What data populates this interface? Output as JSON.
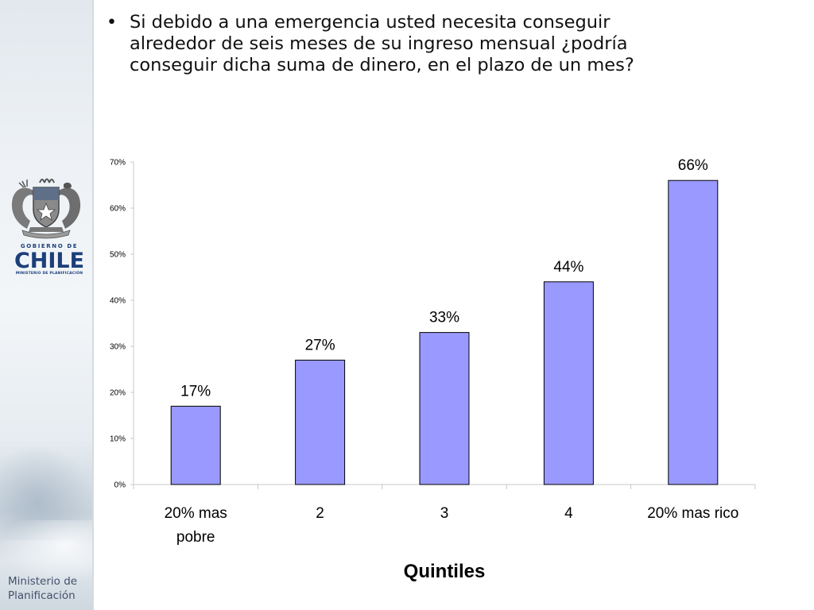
{
  "question": {
    "bullet": "•",
    "lines": [
      "Si debido a una emergencia usted necesita conseguir",
      "alrededor  de seis meses de su ingreso mensual ¿podría",
      "conseguir dicha suma de dinero, en el plazo de un mes?"
    ]
  },
  "branding": {
    "gobierno": "GOBIERNO DE",
    "chile": "CHILE",
    "ministerio_small": "MINISTERIO DE PLANIFICACIÓN",
    "footer_line1": "Ministerio de",
    "footer_line2": "Planificación",
    "crest_icon": "chile-coat-of-arms-icon"
  },
  "colors": {
    "bar_fill": "#9999ff",
    "bar_stroke": "#000000",
    "brand_blue": "#1c3f7a",
    "brand_red": "#c8102e"
  },
  "chart_data": {
    "type": "bar",
    "title": "",
    "xlabel": "Quintiles",
    "ylabel": "",
    "categories": [
      [
        "20% mas",
        "pobre"
      ],
      [
        "2"
      ],
      [
        "3"
      ],
      [
        "4"
      ],
      [
        "20% mas rico"
      ]
    ],
    "values": [
      17,
      27,
      33,
      44,
      66
    ],
    "data_labels": [
      "17%",
      "27%",
      "33%",
      "44%",
      "66%"
    ],
    "ylim": [
      0,
      70
    ],
    "yticks": [
      0,
      10,
      20,
      30,
      40,
      50,
      60,
      70
    ],
    "ytick_labels": [
      "0%",
      "10%",
      "20%",
      "30%",
      "40%",
      "50%",
      "60%",
      "70%"
    ],
    "grid": false,
    "legend": "none"
  }
}
